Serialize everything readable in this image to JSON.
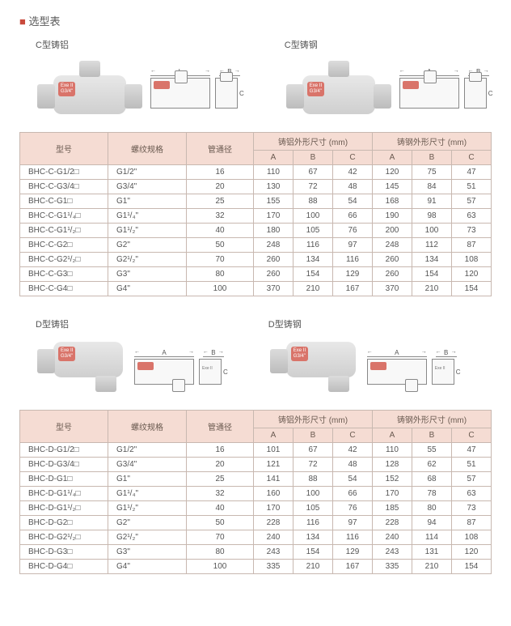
{
  "page_title": "选型表",
  "plate_text": "Exe II\nG3/4\"",
  "sections": [
    {
      "type_al_label": "C型铸铝",
      "type_st_label": "C型铸钢",
      "shape": "c",
      "dims": {
        "L": "L",
        "B": "B",
        "C": "C",
        "A": "A"
      },
      "sch_variant": "c",
      "table": {
        "headers": {
          "model": "型号",
          "thread": "螺纹规格",
          "diam": "管通径",
          "al_group": "铸铝外形尺寸 (mm)",
          "st_group": "铸钢外形尺寸 (mm)",
          "A": "A",
          "B": "B",
          "C": "C"
        },
        "rows": [
          {
            "m": "BHC-C-G1/2□",
            "t": "G1/2\"",
            "d": "16",
            "al": [
              "110",
              "67",
              "42"
            ],
            "st": [
              "120",
              "75",
              "47"
            ]
          },
          {
            "m": "BHC-C-G3/4□",
            "t": "G3/4\"",
            "d": "20",
            "al": [
              "130",
              "72",
              "48"
            ],
            "st": [
              "145",
              "84",
              "51"
            ]
          },
          {
            "m": "BHC-C-G1□",
            "t": "G1\"",
            "d": "25",
            "al": [
              "155",
              "88",
              "54"
            ],
            "st": [
              "168",
              "91",
              "57"
            ]
          },
          {
            "m": "BHC-C-G1¹/₄□",
            "t": "G1¹/₄\"",
            "d": "32",
            "al": [
              "170",
              "100",
              "66"
            ],
            "st": [
              "190",
              "98",
              "63"
            ]
          },
          {
            "m": "BHC-C-G1¹/₂□",
            "t": "G1¹/₂\"",
            "d": "40",
            "al": [
              "180",
              "105",
              "76"
            ],
            "st": [
              "200",
              "100",
              "73"
            ]
          },
          {
            "m": "BHC-C-G2□",
            "t": "G2\"",
            "d": "50",
            "al": [
              "248",
              "116",
              "97"
            ],
            "st": [
              "248",
              "112",
              "87"
            ]
          },
          {
            "m": "BHC-C-G2¹/₂□",
            "t": "G2¹/₂\"",
            "d": "70",
            "al": [
              "260",
              "134",
              "116"
            ],
            "st": [
              "260",
              "134",
              "108"
            ]
          },
          {
            "m": "BHC-C-G3□",
            "t": "G3\"",
            "d": "80",
            "al": [
              "260",
              "154",
              "129"
            ],
            "st": [
              "260",
              "154",
              "120"
            ]
          },
          {
            "m": "BHC-C-G4□",
            "t": "G4\"",
            "d": "100",
            "al": [
              "370",
              "210",
              "167"
            ],
            "st": [
              "370",
              "210",
              "154"
            ]
          }
        ]
      }
    },
    {
      "type_al_label": "D型铸铝",
      "type_st_label": "D型铸钢",
      "shape": "d",
      "dims": {
        "A": "A",
        "B": "B",
        "C": "C"
      },
      "sch_variant": "d",
      "table": {
        "headers": {
          "model": "型号",
          "thread": "螺纹规格",
          "diam": "管通径",
          "al_group": "铸铝外形尺寸 (mm)",
          "st_group": "铸钢外形尺寸 (mm)",
          "A": "A",
          "B": "B",
          "C": "C"
        },
        "rows": [
          {
            "m": "BHC-D-G1/2□",
            "t": "G1/2\"",
            "d": "16",
            "al": [
              "101",
              "67",
              "42"
            ],
            "st": [
              "110",
              "55",
              "47"
            ]
          },
          {
            "m": "BHC-D-G3/4□",
            "t": "G3/4\"",
            "d": "20",
            "al": [
              "121",
              "72",
              "48"
            ],
            "st": [
              "128",
              "62",
              "51"
            ]
          },
          {
            "m": "BHC-D-G1□",
            "t": "G1\"",
            "d": "25",
            "al": [
              "141",
              "88",
              "54"
            ],
            "st": [
              "152",
              "68",
              "57"
            ]
          },
          {
            "m": "BHC-D-G1¹/₄□",
            "t": "G1¹/₄\"",
            "d": "32",
            "al": [
              "160",
              "100",
              "66"
            ],
            "st": [
              "170",
              "78",
              "63"
            ]
          },
          {
            "m": "BHC-D-G1¹/₂□",
            "t": "G1¹/₂\"",
            "d": "40",
            "al": [
              "170",
              "105",
              "76"
            ],
            "st": [
              "185",
              "80",
              "73"
            ]
          },
          {
            "m": "BHC-D-G2□",
            "t": "G2\"",
            "d": "50",
            "al": [
              "228",
              "116",
              "97"
            ],
            "st": [
              "228",
              "94",
              "87"
            ]
          },
          {
            "m": "BHC-D-G2¹/₂□",
            "t": "G2¹/₂\"",
            "d": "70",
            "al": [
              "240",
              "134",
              "116"
            ],
            "st": [
              "240",
              "114",
              "108"
            ]
          },
          {
            "m": "BHC-D-G3□",
            "t": "G3\"",
            "d": "80",
            "al": [
              "243",
              "154",
              "129"
            ],
            "st": [
              "243",
              "131",
              "120"
            ]
          },
          {
            "m": "BHC-D-G4□",
            "t": "G4\"",
            "d": "100",
            "al": [
              "335",
              "210",
              "167"
            ],
            "st": [
              "335",
              "210",
              "154"
            ]
          }
        ]
      }
    }
  ],
  "colors": {
    "accent": "#c94a3c",
    "header_bg": "#f5dcd3",
    "border": "#c8b8b0",
    "plate": "#d9746a"
  }
}
